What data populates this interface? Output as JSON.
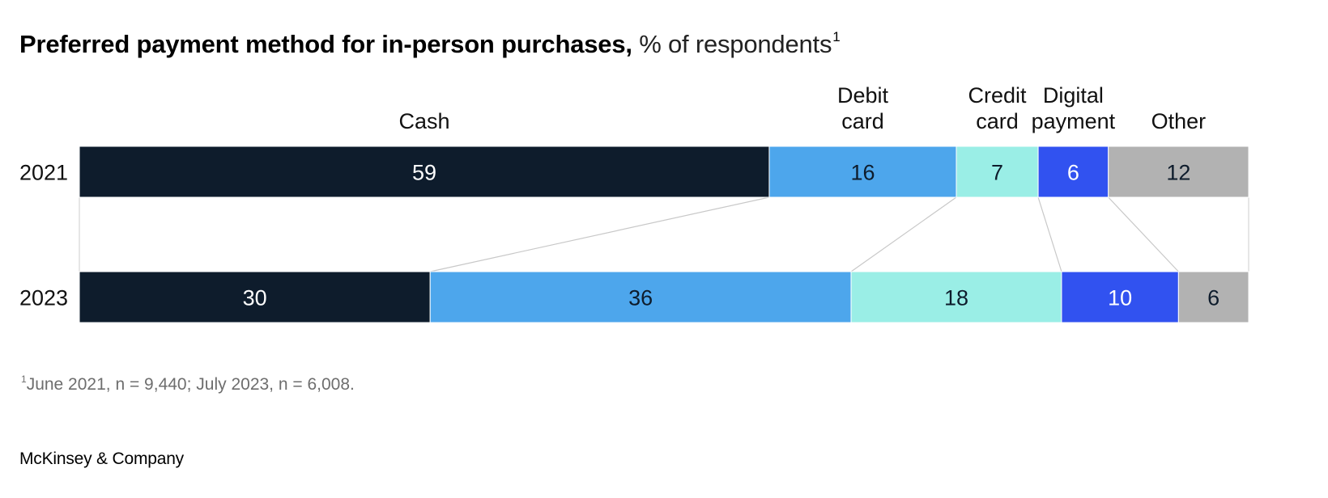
{
  "chart_data": {
    "type": "bar",
    "orientation": "horizontal",
    "stacked": true,
    "normalized": "100%",
    "title": "Preferred payment method for in-person purchases,",
    "subtitle": "% of respondents",
    "title_footnote_marker": "1",
    "categories": [
      "2021",
      "2023"
    ],
    "series": [
      {
        "name": "Cash",
        "label_lines": [
          "Cash"
        ],
        "color": "#0e1c2c",
        "text_color": "#ffffff",
        "values": [
          59,
          30
        ]
      },
      {
        "name": "Debit card",
        "label_lines": [
          "Debit",
          "card"
        ],
        "color": "#4da6ec",
        "text_color": "#0e1c2c",
        "values": [
          16,
          36
        ]
      },
      {
        "name": "Credit card",
        "label_lines": [
          "Credit",
          "card"
        ],
        "color": "#9aeee6",
        "text_color": "#0e1c2c",
        "values": [
          7,
          18
        ]
      },
      {
        "name": "Digital payment",
        "label_lines": [
          "Digital",
          "payment"
        ],
        "color": "#3152f0",
        "text_color": "#ffffff",
        "values": [
          6,
          10
        ]
      },
      {
        "name": "Other",
        "label_lines": [
          "Other"
        ],
        "color": "#b2b2b2",
        "text_color": "#0e1c2c",
        "values": [
          12,
          6
        ]
      }
    ],
    "connector_lines": true,
    "grid": false,
    "legend": "above-bars"
  },
  "footnote": {
    "marker": "1",
    "text": "June 2021, n = 9,440; July 2023, n = 6,008."
  },
  "source": "McKinsey & Company"
}
